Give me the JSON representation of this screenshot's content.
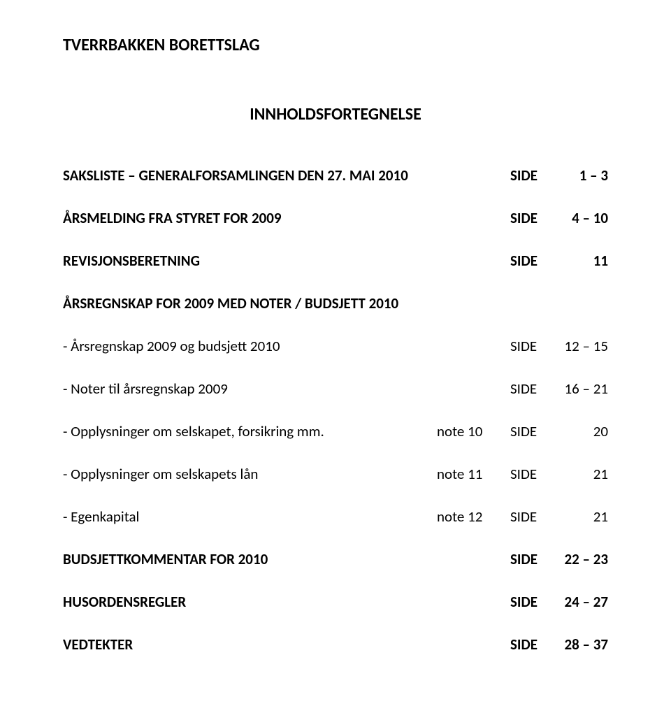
{
  "header": {
    "org_name": "TVERRBAKKEN BORETTSLAG"
  },
  "title": "INNHOLDSFORTEGNELSE",
  "side_label": "SIDE",
  "entries": [
    {
      "label": "SAKSLISTE – GENERALFORSAMLINGEN DEN 27. MAI 2010",
      "note": "",
      "pages": "1 – 3",
      "bold": true
    },
    {
      "label": "ÅRSMELDING FRA STYRET FOR 2009",
      "note": "",
      "pages": "4 – 10",
      "bold": true
    },
    {
      "label": "REVISJONSBERETNING",
      "note": "",
      "pages": "11",
      "bold": true
    },
    {
      "label": "ÅRSREGNSKAP FOR 2009 MED NOTER / BUDSJETT 2010",
      "note": "",
      "pages": "",
      "bold": true,
      "no_side": true
    },
    {
      "label": "- Årsregnskap 2009 og budsjett 2010",
      "note": "",
      "pages": "12 – 15",
      "bold": false
    },
    {
      "label": "- Noter til årsregnskap 2009",
      "note": "",
      "pages": "16 – 21",
      "bold": false
    },
    {
      "label": "- Opplysninger om selskapet, forsikring mm.",
      "note": "note 10",
      "pages": "20",
      "bold": false
    },
    {
      "label": "- Opplysninger om selskapets lån",
      "note": "note 11",
      "pages": "21",
      "bold": false
    },
    {
      "label": "- Egenkapital",
      "note": "note 12",
      "pages": "21",
      "bold": false
    },
    {
      "label": "BUDSJETTKOMMENTAR FOR 2010",
      "note": "",
      "pages": "22 – 23",
      "bold": true
    },
    {
      "label": "HUSORDENSREGLER",
      "note": "",
      "pages": "24 – 27",
      "bold": true
    },
    {
      "label": "VEDTEKTER",
      "note": "",
      "pages": "28 – 37",
      "bold": true
    }
  ]
}
